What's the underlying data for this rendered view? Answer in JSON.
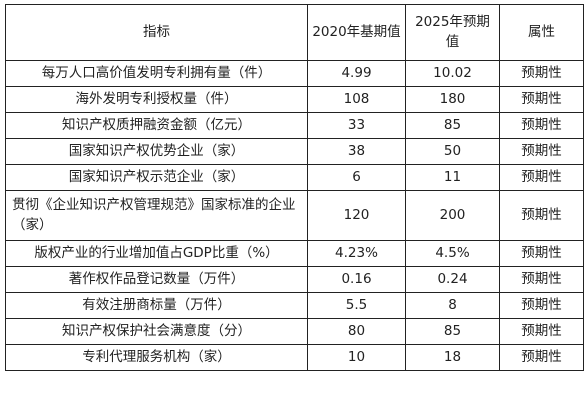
{
  "table": {
    "headers": [
      "指标",
      "2020年基期值",
      "2025年预期值",
      "属性"
    ],
    "rows": [
      {
        "indicator": "每万人口高价值发明专利拥有量（件）",
        "base": "4.99",
        "target": "10.02",
        "attr": "预期性"
      },
      {
        "indicator": "海外发明专利授权量（件）",
        "base": "108",
        "target": "180",
        "attr": "预期性"
      },
      {
        "indicator": "知识产权质押融资金额（亿元）",
        "base": "33",
        "target": "85",
        "attr": "预期性"
      },
      {
        "indicator": "国家知识产权优势企业（家）",
        "base": "38",
        "target": "50",
        "attr": "预期性"
      },
      {
        "indicator": "国家知识产权示范企业（家）",
        "base": "6",
        "target": "11",
        "attr": "预期性"
      },
      {
        "indicator": "贯彻《企业知识产权管理规范》国家标准的企业（家）",
        "base": "120",
        "target": "200",
        "attr": "预期性"
      },
      {
        "indicator": "版权产业的行业增加值占GDP比重（%）",
        "base": "4.23%",
        "target": "4.5%",
        "attr": "预期性"
      },
      {
        "indicator": "著作权作品登记数量（万件）",
        "base": "0.16",
        "target": "0.24",
        "attr": "预期性"
      },
      {
        "indicator": "有效注册商标量（万件）",
        "base": "5.5",
        "target": "8",
        "attr": "预期性"
      },
      {
        "indicator": "知识产权保护社会满意度（分）",
        "base": "80",
        "target": "85",
        "attr": "预期性"
      },
      {
        "indicator": "专利代理服务机构（家）",
        "base": "10",
        "target": "18",
        "attr": "预期性"
      }
    ]
  }
}
